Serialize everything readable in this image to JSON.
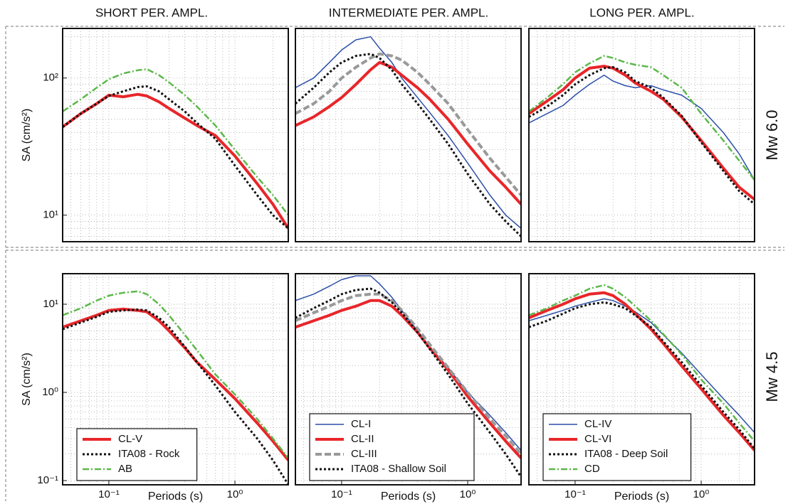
{
  "column_titles": [
    "SHORT PER. AMPL.",
    "INTERMEDIATE PER. AMPL.",
    "LONG PER. AMPL."
  ],
  "row_labels": [
    "Mw 6.0",
    "Mw 4.5"
  ],
  "chart_data": [
    {
      "type": "line",
      "ylabel": "SA (cm/s²)",
      "log_x": true,
      "log_y": true,
      "grid": true,
      "xlim": [
        0.043,
        2.65
      ],
      "ylim": [
        6.4,
        230
      ],
      "yticks": [
        {
          "value": 10,
          "label": "10¹"
        },
        {
          "value": 100,
          "label": "10²"
        }
      ],
      "x": [
        0.043,
        0.06,
        0.08,
        0.1,
        0.13,
        0.17,
        0.2,
        0.25,
        0.3,
        0.4,
        0.5,
        0.7,
        1.0,
        1.5,
        2.0,
        2.65
      ],
      "series": [
        {
          "color": "#e8262a",
          "width": 4,
          "dash": "solid",
          "values": [
            44,
            55,
            65,
            75,
            73,
            76,
            74,
            67,
            60,
            51,
            45,
            38,
            27,
            17,
            12,
            8
          ]
        },
        {
          "color": "#111111",
          "width": 3,
          "dash": "dotted",
          "values": [
            44,
            55,
            65,
            74,
            80,
            86,
            87,
            80,
            70,
            57,
            47,
            36,
            23,
            14,
            10,
            8
          ]
        },
        {
          "color": "#5cb84a",
          "width": 2.5,
          "dash": "dash-dot",
          "values": [
            57,
            70,
            85,
            98,
            108,
            114,
            116,
            105,
            93,
            75,
            62,
            45,
            30,
            19,
            14,
            10
          ]
        }
      ]
    },
    {
      "type": "line",
      "log_x": true,
      "log_y": true,
      "grid": true,
      "xlim": [
        0.043,
        2.65
      ],
      "ylim": [
        6.4,
        230
      ],
      "x": [
        0.043,
        0.06,
        0.08,
        0.1,
        0.13,
        0.17,
        0.2,
        0.25,
        0.3,
        0.4,
        0.5,
        0.7,
        1.0,
        1.5,
        2.0,
        2.65
      ],
      "series": [
        {
          "color": "#2b4fa8",
          "width": 1.5,
          "dash": "solid",
          "values": [
            85,
            100,
            130,
            160,
            190,
            200,
            165,
            130,
            100,
            72,
            56,
            38,
            24,
            14,
            10,
            8
          ]
        },
        {
          "color": "#e8262a",
          "width": 4,
          "dash": "solid",
          "values": [
            45,
            52,
            62,
            72,
            90,
            115,
            130,
            120,
            105,
            85,
            70,
            50,
            33,
            21,
            16,
            12
          ]
        },
        {
          "color": "#999999",
          "width": 4,
          "dash": "dashed",
          "values": [
            55,
            65,
            80,
            100,
            120,
            140,
            150,
            145,
            135,
            110,
            90,
            65,
            42,
            26,
            19,
            14
          ]
        },
        {
          "color": "#111111",
          "width": 3,
          "dash": "dotted",
          "values": [
            65,
            85,
            110,
            130,
            145,
            150,
            140,
            115,
            90,
            65,
            50,
            33,
            20,
            12,
            9,
            7
          ]
        }
      ]
    },
    {
      "type": "line",
      "log_x": true,
      "log_y": true,
      "grid": true,
      "xlim": [
        0.043,
        2.65
      ],
      "ylim": [
        6.4,
        230
      ],
      "x": [
        0.043,
        0.06,
        0.08,
        0.1,
        0.13,
        0.17,
        0.2,
        0.25,
        0.3,
        0.4,
        0.5,
        0.7,
        1.0,
        1.5,
        2.0,
        2.65
      ],
      "series": [
        {
          "color": "#2b4fa8",
          "width": 1.5,
          "dash": "solid",
          "values": [
            47,
            55,
            63,
            75,
            90,
            105,
            95,
            88,
            85,
            88,
            82,
            75,
            60,
            40,
            28,
            18
          ]
        },
        {
          "color": "#e8262a",
          "width": 4,
          "dash": "solid",
          "values": [
            55,
            68,
            82,
            100,
            118,
            122,
            118,
            105,
            92,
            80,
            70,
            52,
            35,
            22,
            16,
            13
          ]
        },
        {
          "color": "#111111",
          "width": 3,
          "dash": "dotted",
          "values": [
            52,
            62,
            75,
            90,
            105,
            118,
            120,
            110,
            95,
            85,
            72,
            53,
            34,
            21,
            15,
            12
          ]
        },
        {
          "color": "#5cb84a",
          "width": 2.5,
          "dash": "dash-dot",
          "values": [
            57,
            72,
            90,
            110,
            128,
            145,
            140,
            130,
            125,
            120,
            105,
            85,
            55,
            35,
            25,
            18
          ]
        }
      ]
    },
    {
      "type": "line",
      "ylabel": "SA (cm/s²)",
      "xlabel": "Periods (s)",
      "log_x": true,
      "log_y": true,
      "grid": true,
      "legend": "lower left",
      "xlim": [
        0.043,
        2.65
      ],
      "ylim": [
        0.0895,
        22.2
      ],
      "xticks": [
        {
          "value": 0.1,
          "label": "10⁻¹"
        },
        {
          "value": 1,
          "label": "10⁰"
        }
      ],
      "yticks": [
        {
          "value": 0.1,
          "label": "10⁻¹"
        },
        {
          "value": 1,
          "label": "10⁰"
        },
        {
          "value": 10,
          "label": "10¹"
        }
      ],
      "x": [
        0.043,
        0.06,
        0.08,
        0.1,
        0.13,
        0.17,
        0.2,
        0.25,
        0.3,
        0.4,
        0.5,
        0.7,
        1.0,
        1.5,
        2.0,
        2.65
      ],
      "series": [
        {
          "name": "CL-V",
          "color": "#e8262a",
          "width": 4,
          "dash": "solid",
          "values": [
            5.5,
            6.5,
            7.5,
            8.5,
            8.8,
            8.5,
            8.2,
            6.5,
            5.0,
            3.2,
            2.2,
            1.4,
            0.85,
            0.45,
            0.28,
            0.17
          ]
        },
        {
          "name": "ITA08 - Rock",
          "color": "#111111",
          "width": 3,
          "dash": "dotted",
          "values": [
            5.2,
            6.2,
            7.2,
            8.2,
            8.5,
            8.7,
            8.5,
            7.0,
            5.5,
            3.3,
            2.2,
            1.2,
            0.6,
            0.3,
            0.17,
            0.09
          ]
        },
        {
          "name": "AB",
          "color": "#5cb84a",
          "width": 2.5,
          "dash": "dash-dot",
          "values": [
            7.5,
            9,
            11,
            12.5,
            13.5,
            14,
            13,
            10,
            7.5,
            4.5,
            3.0,
            1.6,
            0.95,
            0.5,
            0.3,
            0.18
          ]
        }
      ]
    },
    {
      "type": "line",
      "xlabel": "Periods (s)",
      "log_x": true,
      "log_y": true,
      "grid": true,
      "legend": "lower left",
      "xlim": [
        0.043,
        2.65
      ],
      "ylim": [
        0.0895,
        22.2
      ],
      "xticks": [
        {
          "value": 0.1,
          "label": "10⁻¹"
        },
        {
          "value": 1,
          "label": "10⁰"
        }
      ],
      "x": [
        0.043,
        0.06,
        0.08,
        0.1,
        0.13,
        0.17,
        0.2,
        0.25,
        0.3,
        0.4,
        0.5,
        0.7,
        1.0,
        1.5,
        2.0,
        2.65
      ],
      "series": [
        {
          "name": "CL-I",
          "color": "#2b4fa8",
          "width": 1.5,
          "dash": "solid",
          "values": [
            11,
            13,
            16,
            19,
            21,
            21,
            17,
            12,
            8.5,
            5,
            3.3,
            1.9,
            1.0,
            0.55,
            0.35,
            0.22
          ]
        },
        {
          "name": "CL-II",
          "color": "#e8262a",
          "width": 4,
          "dash": "solid",
          "values": [
            5.5,
            6.5,
            7.5,
            8.5,
            9.5,
            11,
            11,
            9.5,
            7.5,
            4.8,
            3.2,
            1.8,
            0.9,
            0.45,
            0.28,
            0.18
          ]
        },
        {
          "name": "CL-III",
          "color": "#999999",
          "width": 4,
          "dash": "dashed",
          "values": [
            6.5,
            8,
            9.5,
            11,
            12.5,
            13,
            13,
            11,
            8.5,
            5.3,
            3.5,
            1.9,
            1.0,
            0.5,
            0.32,
            0.2
          ]
        },
        {
          "name": "ITA08 - Shallow Soil",
          "color": "#111111",
          "width": 3,
          "dash": "dotted",
          "values": [
            7,
            9,
            11,
            13,
            14.5,
            15,
            13.5,
            10.5,
            8,
            4.8,
            3.1,
            1.6,
            0.75,
            0.35,
            0.2,
            0.11
          ]
        }
      ]
    },
    {
      "type": "line",
      "xlabel": "Periods (s)",
      "log_x": true,
      "log_y": true,
      "grid": true,
      "legend": "lower left",
      "xlim": [
        0.043,
        2.65
      ],
      "ylim": [
        0.0895,
        22.2
      ],
      "xticks": [
        {
          "value": 0.1,
          "label": "10⁻¹"
        },
        {
          "value": 1,
          "label": "10⁰"
        }
      ],
      "x": [
        0.043,
        0.06,
        0.08,
        0.1,
        0.13,
        0.17,
        0.2,
        0.25,
        0.3,
        0.4,
        0.5,
        0.7,
        1.0,
        1.5,
        2.0,
        2.65
      ],
      "series": [
        {
          "name": "CL-IV",
          "color": "#2b4fa8",
          "width": 1.5,
          "dash": "solid",
          "values": [
            6.5,
            7.5,
            8.5,
            9.5,
            10.5,
            11.5,
            11,
            9.5,
            8.2,
            6.2,
            4.5,
            2.8,
            1.6,
            0.85,
            0.55,
            0.35
          ]
        },
        {
          "name": "CL-VI",
          "color": "#e8262a",
          "width": 4,
          "dash": "solid",
          "values": [
            7,
            8.5,
            10,
            11.5,
            13,
            13.5,
            12.5,
            10,
            7.8,
            5.2,
            3.6,
            2.0,
            1.1,
            0.55,
            0.35,
            0.22
          ]
        },
        {
          "name": "ITA08 - Deep Soil",
          "color": "#111111",
          "width": 3,
          "dash": "dotted",
          "values": [
            5.5,
            6.5,
            7.8,
            9,
            10,
            10.5,
            10,
            9,
            7.5,
            5.5,
            3.8,
            2.2,
            1.2,
            0.6,
            0.38,
            0.23
          ]
        },
        {
          "name": "CD",
          "color": "#5cb84a",
          "width": 2.5,
          "dash": "dash-dot",
          "values": [
            7.5,
            9,
            11,
            12.5,
            15,
            16.5,
            15,
            12,
            9.5,
            6.5,
            4.6,
            2.7,
            1.4,
            0.75,
            0.45,
            0.28
          ]
        }
      ]
    }
  ]
}
